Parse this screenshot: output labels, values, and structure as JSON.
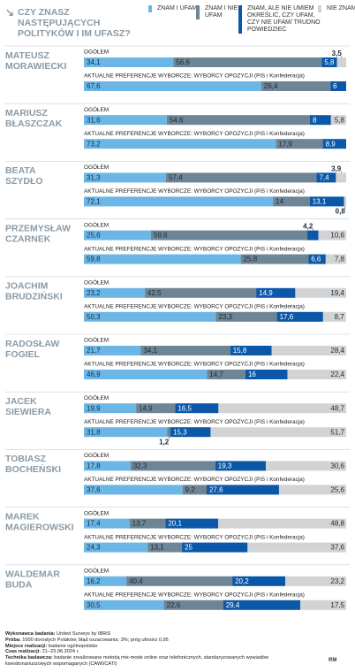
{
  "chart_data": {
    "type": "stacked-bar-h",
    "title": "CZY ZNASZ NASTĘPUJĄCYCH POLITYKÓW I IM UFASZ?",
    "xlim": [
      0,
      100
    ],
    "row_labels": [
      "OGÓŁEM",
      "AKTUALNE PREFERENCJE WYBORCZE: WYBORCY OPOZYCJI (PiS i Konfederacja)"
    ],
    "groups": [
      {
        "name": [
          "MATEUSZ",
          "MORAWIECKI"
        ]
      },
      {
        "name": [
          "MARIUSZ",
          "BŁASZCZAK"
        ]
      },
      {
        "name": [
          "BEATA",
          "SZYDŁO"
        ]
      },
      {
        "name": [
          "PRZEMYSŁAW",
          "CZARNEK"
        ]
      },
      {
        "name": [
          "JOACHIM",
          "BRUDZIŃSKI"
        ]
      },
      {
        "name": [
          "RADOSŁAW",
          "FOGIEL"
        ]
      },
      {
        "name": [
          "JACEK",
          "SIEWIERA"
        ]
      },
      {
        "name": [
          "TOBIASZ",
          "BOCHEŃSKI"
        ]
      },
      {
        "name": [
          "MAREK",
          "MAGIEROWSKI"
        ]
      },
      {
        "name": [
          "WALDEMAR",
          "BUDA"
        ]
      }
    ],
    "series": [
      {
        "name": "ZNAM I UFAM",
        "color": "#6cb6e6",
        "values": [
          34.1,
          67.6,
          31.6,
          73.2,
          31.3,
          72.1,
          25.6,
          59.8,
          23.2,
          50.3,
          21.7,
          46.9,
          19.9,
          31.8,
          17.8,
          37.6,
          17.4,
          24.3,
          16.2,
          30.5
        ],
        "value_labels": [
          "34,1",
          "67,6",
          "31,6",
          "73,2",
          "31,3",
          "72,1",
          "25,6",
          "59,8",
          "23,2",
          "50,3",
          "21,7",
          "46,9",
          "19,9",
          "31,8",
          "17,8",
          "37,6",
          "17,4",
          "24,3",
          "16,2",
          "30,5"
        ]
      },
      {
        "name": "ZNAM I NIE UFAM",
        "color": "#6e8595",
        "values": [
          56.6,
          26.4,
          54.6,
          17.9,
          57.4,
          14,
          59.6,
          25.8,
          42.5,
          23.3,
          34.1,
          14.7,
          14.9,
          1.2,
          32.3,
          9.2,
          13.7,
          13.1,
          40.4,
          22.6
        ],
        "value_labels": [
          "56,6",
          "26,4",
          "54,6",
          "17,9",
          "57,4",
          "14",
          "59,6",
          "25,8",
          "42,5",
          "23,3",
          "34,1",
          "14,7",
          "14,9",
          "1,2",
          "32,3",
          "9,2",
          "13,7",
          "13,1",
          "40,4",
          "22,6"
        ]
      },
      {
        "name": "ZNAM, ALE NIE UMIEM OKREŚLIĆ, CZY UFAM, CZY NIE UFAM/ TRUDNO POWIEDZIEĆ",
        "color": "#0c58a8",
        "values": [
          5.8,
          6,
          8,
          8.9,
          7.4,
          13.1,
          4.2,
          6.6,
          14.9,
          17.6,
          15.8,
          16,
          16.5,
          15.3,
          19.3,
          27.6,
          20.1,
          25,
          20.2,
          29.4
        ],
        "value_labels": [
          "5,8",
          "6",
          "8",
          "8,9",
          "7,4",
          "13,1",
          "4,2",
          "6,6",
          "14,9",
          "17,6",
          "15,8",
          "16",
          "16,5",
          "15,3",
          "19,3",
          "27,6",
          "20,1",
          "25",
          "20,2",
          "29,4"
        ]
      },
      {
        "name": "NIE ZNAM",
        "color": "#d2d3d5",
        "values": [
          3.5,
          null,
          5.8,
          null,
          3.9,
          0.8,
          10.6,
          7.8,
          19.4,
          8.7,
          28.4,
          22.4,
          48.7,
          51.7,
          30.6,
          25.6,
          48.8,
          37.6,
          23.2,
          17.5
        ],
        "value_labels": [
          "3,5",
          null,
          "5,8",
          null,
          "3,9",
          "0,8",
          "10,6",
          "7,8",
          "19,4",
          "8,7",
          "28,4",
          "22,4",
          "48,7",
          "51,7",
          "30,6",
          "25,6",
          "48,8",
          "37,6",
          "23,2",
          "17,5"
        ]
      }
    ],
    "footer": [
      {
        "label": "Wykonawca badania:",
        "text": "United Surveys by IBRiS"
      },
      {
        "label": "Próba:",
        "text": "1000 dorosłych Polaków; błąd oszacowania: 3%; próg ufności 0,95"
      },
      {
        "label": "Miejsce realizacji:",
        "text": "badanie ogólnopolskie"
      },
      {
        "label": "Czas realizacji:",
        "text": "21–23.06.2024 r."
      },
      {
        "label": "Technika badawcza:",
        "text": "badanie zrealizowane metodą mix-mode online oraz telefonicznych, standaryzowanych wywiadów kwestionariuszowych wspomaganych (CAWI/CATI)"
      }
    ],
    "logo": "RM"
  }
}
